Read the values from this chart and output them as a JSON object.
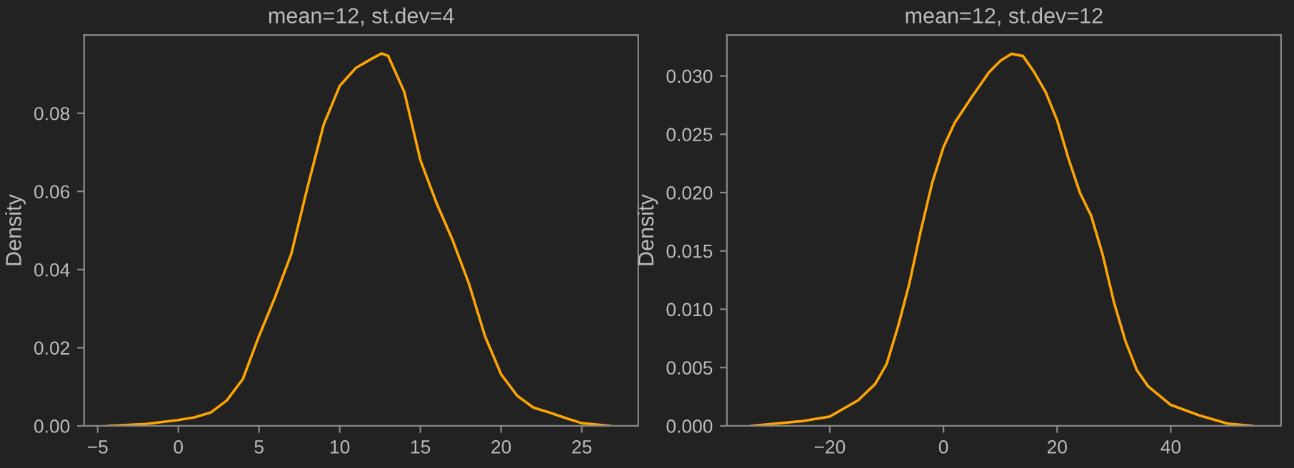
{
  "chart_data": [
    {
      "type": "line",
      "title": "mean=12, st.dev=4",
      "ylabel": "Density",
      "xlim": [
        -5.84,
        28.5
      ],
      "ylim": [
        0,
        0.1
      ],
      "xticks": [
        {
          "value": -5,
          "label": "−5"
        },
        0,
        5,
        10,
        15,
        20,
        25
      ],
      "yticks": [
        {
          "value": 0,
          "label": "0.00"
        },
        {
          "value": 0.02,
          "label": "0.02"
        },
        {
          "value": 0.04,
          "label": "0.04"
        },
        {
          "value": 0.06,
          "label": "0.06"
        },
        {
          "value": 0.08,
          "label": "0.08"
        }
      ],
      "grid": false,
      "series": [
        {
          "color": "#ffa500",
          "x": [
            -4.4,
            -2,
            -1,
            0,
            1,
            2,
            3,
            4,
            5,
            6,
            7,
            8,
            9,
            10,
            11,
            12,
            12.6,
            13,
            14,
            15,
            16,
            17,
            18,
            19,
            20,
            21,
            22,
            23,
            24,
            25,
            26.8
          ],
          "values": [
            0,
            0.0005,
            0.001,
            0.0015,
            0.0022,
            0.0034,
            0.0065,
            0.012,
            0.023,
            0.033,
            0.044,
            0.061,
            0.077,
            0.087,
            0.0916,
            0.094,
            0.0953,
            0.0947,
            0.0855,
            0.068,
            0.057,
            0.0475,
            0.0365,
            0.023,
            0.0132,
            0.0077,
            0.0047,
            0.0034,
            0.002,
            0.0007,
            0
          ]
        }
      ]
    },
    {
      "type": "line",
      "title": "mean=12, st.dev=12",
      "ylabel": "Density",
      "xlim": [
        -38.1,
        59.4
      ],
      "ylim": [
        0,
        0.0335
      ],
      "xticks": [
        {
          "value": -20,
          "label": "−20"
        },
        0,
        20,
        40
      ],
      "yticks": [
        {
          "value": 0,
          "label": "0.000"
        },
        {
          "value": 0.005,
          "label": "0.005"
        },
        {
          "value": 0.01,
          "label": "0.010"
        },
        {
          "value": 0.015,
          "label": "0.015"
        },
        {
          "value": 0.02,
          "label": "0.020"
        },
        {
          "value": 0.025,
          "label": "0.025"
        },
        {
          "value": 0.03,
          "label": "0.030"
        }
      ],
      "grid": false,
      "series": [
        {
          "color": "#ffa500",
          "x": [
            -33.9,
            -25,
            -20,
            -15,
            -12,
            -10,
            -8,
            -6,
            -4,
            -2,
            0,
            2,
            5,
            8,
            10,
            12,
            14,
            16,
            18,
            20,
            22,
            24,
            26,
            28,
            30,
            32,
            34,
            36,
            40,
            45,
            50,
            54.5
          ],
          "values": [
            0,
            0.0004,
            0.0008,
            0.0022,
            0.0036,
            0.0053,
            0.0085,
            0.0122,
            0.0167,
            0.0208,
            0.0239,
            0.026,
            0.0282,
            0.0303,
            0.0313,
            0.0319,
            0.0317,
            0.0303,
            0.0286,
            0.0262,
            0.0229,
            0.02,
            0.018,
            0.0147,
            0.0106,
            0.0073,
            0.0048,
            0.0034,
            0.0018,
            0.0009,
            0.0002,
            0
          ]
        }
      ]
    }
  ]
}
